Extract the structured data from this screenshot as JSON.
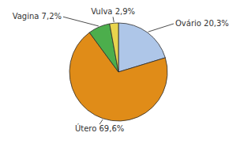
{
  "chart_data": {
    "type": "pie",
    "categories": [
      "Ovário 20,3%",
      "Útero 69,6%",
      "Vagina 7,2%",
      "Vulva 2,9%"
    ],
    "values": [
      20.3,
      69.6,
      7.2,
      2.9
    ],
    "colors": [
      "#aec6e8",
      "#e08c18",
      "#4cae4c",
      "#e8d44d"
    ]
  }
}
